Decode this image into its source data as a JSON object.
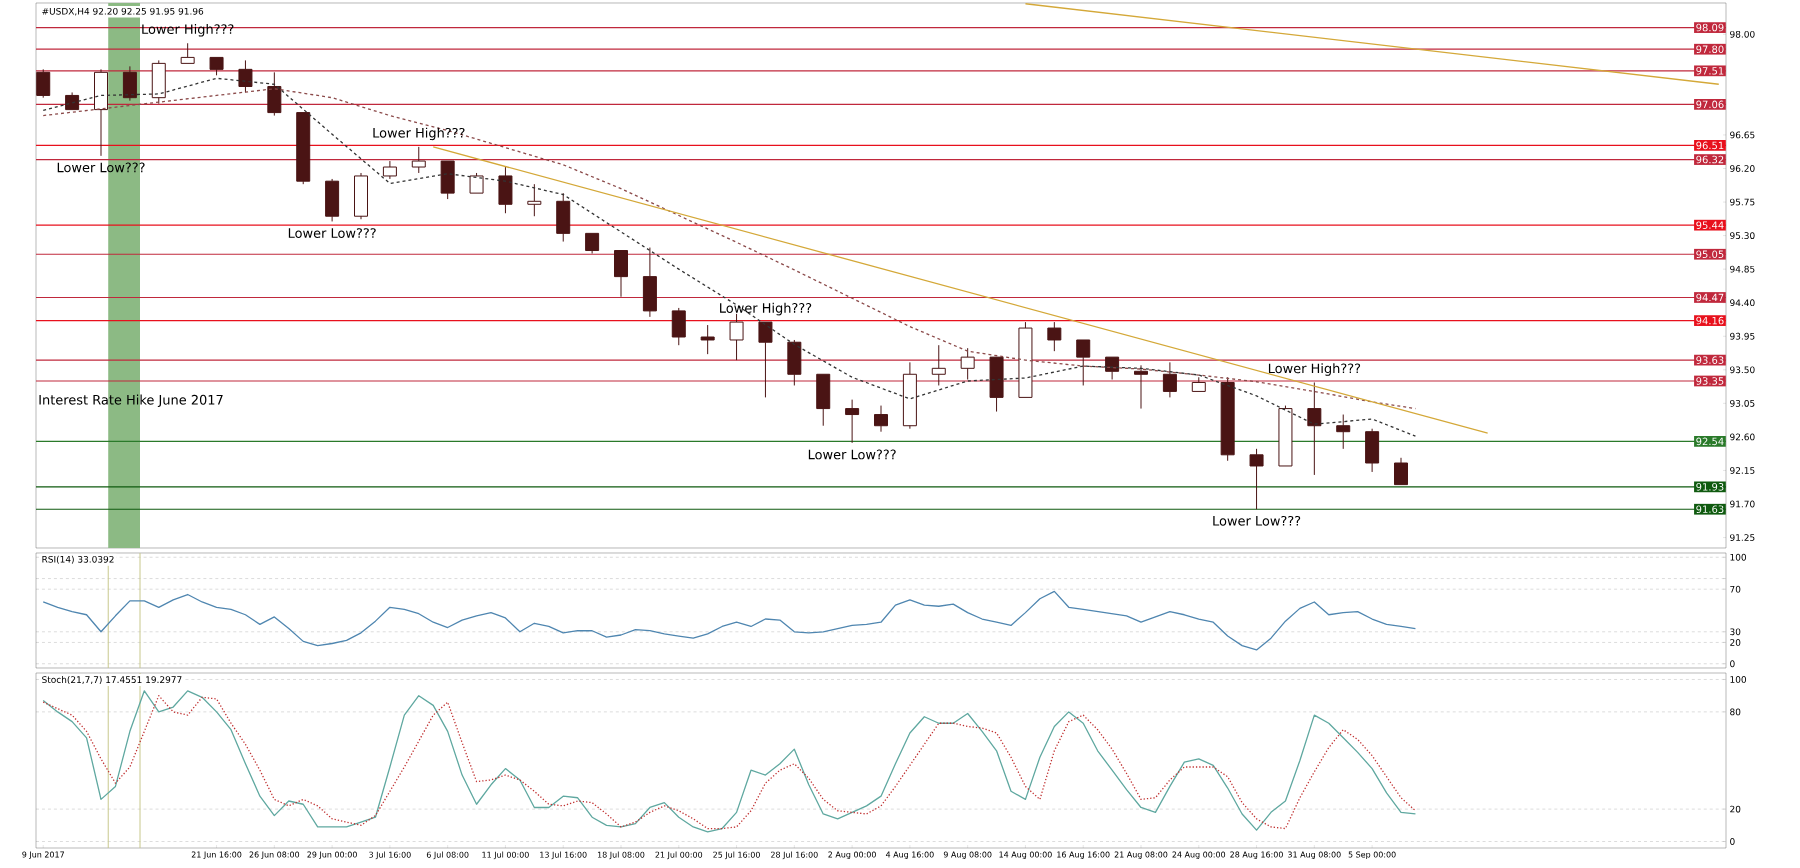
{
  "chart_data": [
    {
      "type": "candlestick",
      "title": "#USDX,H4 92.20 92.25 91.95 91.96",
      "color": "#4a1414",
      "tick_labels": "y",
      "ohlc": [
        [
          97.49,
          97.53,
          97.15,
          97.18
        ],
        null,
        [
          97.18,
          97.22,
          96.99,
          96.99
        ],
        null,
        [
          96.99,
          97.53,
          96.37,
          97.49
        ],
        null,
        [
          97.49,
          97.57,
          97.11,
          97.15
        ],
        null,
        [
          97.15,
          97.65,
          97.07,
          97.61
        ],
        null,
        [
          97.61,
          97.88,
          97.61,
          97.69
        ],
        null,
        [
          97.69,
          97.69,
          97.45,
          97.53
        ],
        null,
        [
          97.53,
          97.65,
          97.22,
          97.3
        ],
        null,
        [
          97.3,
          97.49,
          96.91,
          96.95
        ],
        null,
        [
          96.95,
          96.95,
          95.99,
          96.03
        ],
        null,
        [
          96.03,
          96.06,
          95.49,
          95.56
        ],
        null,
        [
          95.56,
          96.14,
          95.52,
          96.1
        ],
        null,
        [
          96.1,
          96.3,
          96.06,
          96.22
        ],
        null,
        [
          96.22,
          96.49,
          96.14,
          96.3
        ],
        null,
        [
          96.3,
          96.3,
          95.79,
          95.87
        ],
        null,
        [
          95.87,
          96.14,
          95.87,
          96.1
        ],
        null,
        [
          96.1,
          96.22,
          95.6,
          95.72
        ],
        null,
        [
          95.72,
          95.99,
          95.56,
          95.76
        ],
        null,
        [
          95.76,
          95.87,
          95.22,
          95.33
        ],
        null,
        [
          95.33,
          95.33,
          95.06,
          95.1
        ],
        null,
        [
          95.1,
          95.1,
          94.48,
          94.75
        ],
        null,
        [
          94.75,
          95.14,
          94.21,
          94.29
        ],
        null,
        [
          94.29,
          94.33,
          93.83,
          93.94
        ],
        null,
        [
          93.94,
          94.1,
          93.71,
          93.9
        ],
        null,
        [
          93.9,
          94.25,
          93.63,
          94.14
        ],
        null,
        [
          94.14,
          94.14,
          93.13,
          93.87
        ],
        null,
        [
          93.87,
          93.9,
          93.29,
          93.44
        ],
        null,
        [
          93.44,
          93.44,
          92.75,
          92.98
        ],
        null,
        [
          92.98,
          93.1,
          92.52,
          92.9
        ],
        null,
        [
          92.9,
          93.02,
          92.67,
          92.75
        ],
        null,
        [
          92.75,
          93.6,
          92.71,
          93.44
        ],
        null,
        [
          93.44,
          93.83,
          93.29,
          93.52
        ],
        null,
        [
          93.52,
          93.79,
          93.37,
          93.67
        ],
        null,
        [
          93.67,
          93.67,
          92.94,
          93.13
        ],
        null,
        [
          93.13,
          94.14,
          93.13,
          94.06
        ],
        null,
        [
          94.06,
          94.14,
          93.75,
          93.9
        ],
        null,
        [
          93.9,
          93.9,
          93.29,
          93.67
        ],
        null,
        [
          93.67,
          93.67,
          93.37,
          93.48
        ],
        null,
        [
          93.48,
          93.56,
          92.98,
          93.44
        ],
        null,
        [
          93.44,
          93.6,
          93.13,
          93.21
        ],
        null,
        [
          93.21,
          93.4,
          93.21,
          93.33
        ],
        null,
        [
          93.33,
          93.4,
          92.28,
          92.36
        ],
        null,
        [
          92.36,
          92.44,
          91.63,
          92.21
        ],
        null,
        [
          92.21,
          93.02,
          92.21,
          92.98
        ],
        null,
        [
          92.98,
          93.33,
          92.09,
          92.75
        ],
        null,
        [
          92.75,
          92.9,
          92.44,
          92.67
        ],
        null,
        [
          92.67,
          92.71,
          92.13,
          92.25
        ],
        null,
        [
          92.25,
          92.32,
          91.96,
          91.96
        ],
        null,
        null,
        null,
        null,
        null,
        null,
        null,
        null,
        null,
        null,
        null,
        null,
        null,
        null,
        null,
        null,
        null,
        null,
        null,
        null,
        null,
        null
      ],
      "series": [
        {
          "type": "line",
          "color": "#8b4a4a",
          "line_style": "dashed",
          "values": [
            96.91,
            null,
            null,
            null,
            97.0,
            null,
            null,
            null,
            97.09,
            null,
            null,
            null,
            97.18,
            null,
            null,
            null,
            97.27,
            null,
            null,
            null,
            97.15,
            null,
            null,
            null,
            96.91,
            null,
            null,
            null,
            96.71,
            null,
            null,
            null,
            96.48,
            null,
            null,
            null,
            96.25,
            null,
            null,
            null,
            95.93,
            null,
            null,
            null,
            95.57,
            null,
            null,
            null,
            95.21,
            null,
            null,
            null,
            94.84,
            null,
            null,
            null,
            94.46,
            null,
            null,
            null,
            94.08,
            null,
            null,
            null,
            93.75,
            null,
            null,
            null,
            93.63,
            null,
            null,
            null,
            93.55,
            null,
            null,
            null,
            93.51,
            null,
            null,
            null,
            93.43,
            null,
            null,
            null,
            93.34,
            null,
            null,
            null,
            93.21,
            null,
            null,
            null,
            93.07,
            null,
            null,
            92.98,
            null,
            null,
            null,
            null,
            null,
            null,
            null,
            null,
            null,
            null,
            null,
            null,
            null,
            null,
            null,
            null,
            null,
            null,
            null,
            null,
            null
          ]
        },
        {
          "type": "line",
          "color": "#333333",
          "line_style": "dashed",
          "values": [
            96.98,
            null,
            null,
            null,
            97.18,
            null,
            null,
            null,
            97.2,
            null,
            null,
            null,
            97.41,
            null,
            null,
            null,
            97.33,
            null,
            null,
            null,
            96.66,
            null,
            null,
            null,
            96.0,
            null,
            null,
            null,
            96.13,
            null,
            null,
            null,
            96.03,
            null,
            null,
            null,
            95.85,
            null,
            null,
            null,
            95.35,
            null,
            null,
            null,
            94.85,
            null,
            null,
            null,
            94.37,
            null,
            null,
            null,
            93.84,
            null,
            null,
            null,
            93.4,
            null,
            null,
            null,
            93.11,
            null,
            null,
            null,
            93.35,
            null,
            null,
            null,
            93.39,
            null,
            null,
            null,
            93.55,
            null,
            null,
            null,
            93.52,
            null,
            null,
            null,
            93.43,
            null,
            null,
            null,
            93.15,
            null,
            null,
            null,
            92.77,
            null,
            null,
            null,
            92.84,
            null,
            null,
            92.61,
            null,
            null,
            null,
            null,
            null,
            null,
            null,
            null,
            null,
            null,
            null,
            null,
            null,
            null,
            null,
            null,
            null,
            null,
            null,
            null,
            null
          ]
        },
        {
          "type": "line",
          "color": "#d4a838",
          "line_style": "solid",
          "values": [
            null,
            null,
            null,
            null,
            null,
            null,
            null,
            null,
            null,
            null,
            null,
            null,
            null,
            null,
            null,
            null,
            null,
            null,
            null,
            null,
            null,
            null,
            null,
            null,
            null,
            null,
            null,
            96.49,
            null,
            null,
            null,
            null,
            null,
            null,
            null,
            null,
            null,
            null,
            null,
            null,
            null,
            null,
            null,
            null,
            null,
            null,
            null,
            null,
            null,
            null,
            null,
            null,
            null,
            null,
            null,
            null,
            null,
            null,
            null,
            null,
            null,
            null,
            null,
            null,
            null,
            null,
            null,
            null,
            null,
            null,
            null,
            null,
            null,
            null,
            null,
            null,
            null,
            null,
            null,
            null,
            null,
            null,
            null,
            null,
            null,
            null,
            null,
            null,
            null,
            null,
            null,
            null,
            null,
            null,
            null,
            null,
            null,
            null,
            null,
            null,
            92.65,
            null,
            null,
            null,
            null,
            null,
            null,
            null,
            null,
            null,
            null,
            null,
            null,
            null,
            null,
            null,
            null
          ]
        },
        {
          "type": "line",
          "color": "#d4a838",
          "line_style": "solid",
          "values": [
            null,
            null,
            null,
            null,
            null,
            null,
            null,
            null,
            null,
            null,
            null,
            null,
            null,
            null,
            null,
            null,
            null,
            null,
            null,
            null,
            null,
            null,
            null,
            null,
            null,
            null,
            null,
            null,
            null,
            null,
            null,
            null,
            null,
            null,
            null,
            null,
            null,
            null,
            null,
            null,
            null,
            null,
            null,
            null,
            null,
            null,
            null,
            null,
            null,
            null,
            null,
            null,
            null,
            null,
            null,
            null,
            null,
            null,
            null,
            null,
            null,
            null,
            null,
            null,
            null,
            null,
            null,
            null,
            98.41,
            null,
            null,
            null,
            null,
            null,
            null,
            null,
            null,
            null,
            null,
            null,
            null,
            null,
            null,
            null,
            null,
            null,
            null,
            null,
            null,
            null,
            null,
            null,
            null,
            null,
            null,
            null,
            null,
            null,
            null,
            null,
            null,
            null,
            null,
            null,
            null,
            null,
            null,
            null,
            null,
            null,
            null,
            null,
            null,
            null,
            null,
            null,
            97.33
          ]
        }
      ],
      "ylim": [
        91.11,
        98.42
      ],
      "yticks": [
        {
          "value": 98,
          "label": "98.00"
        },
        {
          "value": 96.65,
          "label": "96.65"
        },
        {
          "value": 96.2,
          "label": "96.20"
        },
        {
          "value": 95.75,
          "label": "95.75"
        },
        {
          "value": 95.3,
          "label": "95.30"
        },
        {
          "value": 94.85,
          "label": "94.85"
        },
        {
          "value": 94.4,
          "label": "94.40"
        },
        {
          "value": 93.95,
          "label": "93.95"
        },
        {
          "value": 93.5,
          "label": "93.50"
        },
        {
          "value": 93.05,
          "label": "93.05"
        },
        {
          "value": 92.6,
          "label": "92.60"
        },
        {
          "value": 92.15,
          "label": "92.15"
        },
        {
          "value": 91.7,
          "label": "91.70"
        },
        {
          "value": 91.25,
          "label": "91.25"
        }
      ],
      "ref_lines": [
        {
          "axis": "y",
          "value": 98.09,
          "label": "98.09",
          "color": "#c0283c"
        },
        {
          "axis": "y",
          "value": 97.8,
          "label": "97.80",
          "color": "#c0283c"
        },
        {
          "axis": "y",
          "value": 97.51,
          "label": "97.51",
          "color": "#c0283c"
        },
        {
          "axis": "y",
          "value": 97.06,
          "label": "97.06",
          "color": "#c0283c"
        },
        {
          "axis": "y",
          "value": 96.51,
          "label": "96.51",
          "color": "#e8101c"
        },
        {
          "axis": "y",
          "value": 96.32,
          "label": "96.32",
          "color": "#c0283c"
        },
        {
          "axis": "y",
          "value": 95.44,
          "label": "95.44",
          "color": "#e8101c"
        },
        {
          "axis": "y",
          "value": 95.05,
          "label": "95.05",
          "color": "#c0283c"
        },
        {
          "axis": "y",
          "value": 94.47,
          "label": "94.47",
          "color": "#c0283c"
        },
        {
          "axis": "y",
          "value": 94.16,
          "label": "94.16",
          "color": "#e8101c"
        },
        {
          "axis": "y",
          "value": 93.63,
          "label": "93.63",
          "color": "#c0283c"
        },
        {
          "axis": "y",
          "value": 93.35,
          "label": "93.35",
          "color": "#c0283c"
        },
        {
          "axis": "y",
          "value": 92.54,
          "label": "92.54",
          "color": "#2a7a2a"
        },
        {
          "axis": "y",
          "value": 91.93,
          "label": "91.93",
          "color": "#0f5a0f"
        },
        {
          "axis": "y",
          "value": 91.63,
          "label": "91.63",
          "color": "#0f5a0f"
        }
      ],
      "annotations": [
        {
          "text": "Lower High???",
          "y": 97.88
        },
        {
          "text": "Lower Low???",
          "y": 96.37
        },
        {
          "text": "Lower High???",
          "y": 96.49
        },
        {
          "text": "Lower Low???",
          "y": 95.49
        },
        {
          "text": "Lower High???",
          "y": 94.14
        },
        {
          "text": "Lower Low???",
          "y": 92.52
        },
        {
          "text": "Lower High???",
          "y": 93.33
        },
        {
          "text": "Lower Low???",
          "y": 91.63
        },
        "Interest Rate Hike June 2017"
      ]
    },
    {
      "type": "line",
      "title": "RSI(14) 33.0392",
      "color": "#4f86b0",
      "tick_labels": "y",
      "grid": "y",
      "values": [
        58,
        53,
        49,
        46,
        30,
        45,
        59,
        59,
        53,
        60,
        65,
        58,
        53,
        51,
        46,
        37,
        44,
        33,
        21,
        17,
        19,
        22,
        29,
        40,
        53,
        51,
        47,
        39,
        34,
        41,
        45,
        48,
        43,
        30,
        38,
        35,
        29,
        31,
        31,
        25,
        27,
        32,
        31,
        28,
        26,
        24,
        28,
        35,
        39,
        35,
        42,
        41,
        30,
        29,
        30,
        33,
        36,
        37,
        39,
        55,
        60,
        55,
        54,
        56,
        48,
        42,
        39,
        36,
        48,
        61,
        68,
        53,
        51,
        49,
        47,
        45,
        39,
        44,
        49,
        46,
        42,
        39,
        26,
        17,
        13,
        24,
        40,
        52,
        58,
        46,
        48,
        49,
        42,
        37,
        35,
        33,
        null,
        null,
        null,
        null,
        null,
        null,
        null,
        null,
        null,
        null,
        null,
        null,
        null,
        null,
        null,
        null,
        null,
        null,
        null,
        null,
        null
      ],
      "ylim": [
        -4,
        104
      ],
      "yticks": [
        0,
        20,
        30,
        70,
        {
          "value": 80,
          "label": null
        },
        100
      ]
    },
    {
      "type": "line",
      "title": "Stoch(21,7,7) 17.4551 19.2977",
      "grid": "y",
      "categories": [
        "9 Jun 2017",
        null,
        null,
        null,
        null,
        null,
        null,
        null,
        null,
        null,
        null,
        null,
        "21 Jun 16:00",
        null,
        null,
        null,
        "26 Jun 08:00",
        null,
        null,
        null,
        "29 Jun 00:00",
        null,
        null,
        null,
        "3 Jul 16:00",
        null,
        null,
        null,
        "6 Jul 08:00",
        null,
        null,
        null,
        "11 Jul 00:00",
        null,
        null,
        null,
        "13 Jul 16:00",
        null,
        null,
        null,
        "18 Jul 08:00",
        null,
        null,
        null,
        "21 Jul 00:00",
        null,
        null,
        null,
        "25 Jul 16:00",
        null,
        null,
        null,
        "28 Jul 16:00",
        null,
        null,
        null,
        "2 Aug 00:00",
        null,
        null,
        null,
        "4 Aug 16:00",
        null,
        null,
        null,
        "9 Aug 08:00",
        null,
        null,
        null,
        "14 Aug 00:00",
        null,
        null,
        null,
        "16 Aug 16:00",
        null,
        null,
        null,
        "21 Aug 08:00",
        null,
        null,
        null,
        "24 Aug 00:00",
        null,
        null,
        null,
        "28 Aug 16:00",
        null,
        null,
        null,
        "31 Aug 08:00",
        null,
        null,
        null,
        "5 Sep 00:00",
        null,
        null,
        null,
        null,
        null,
        null,
        null,
        null,
        null,
        null,
        null,
        null,
        null,
        null,
        null,
        null,
        null,
        null,
        null,
        null,
        null,
        null,
        null,
        null
      ],
      "series": [
        {
          "color": "#5fa8a0",
          "line_style": "solid",
          "values": [
            87,
            80,
            74,
            64,
            26,
            34,
            68,
            93,
            80,
            83,
            93,
            89,
            80,
            69,
            48,
            28,
            16,
            25,
            23,
            9,
            9,
            9,
            12,
            15,
            46,
            78,
            90,
            84,
            68,
            41,
            23,
            35,
            45,
            38,
            21,
            21,
            28,
            27,
            15,
            10,
            9,
            11,
            21,
            24,
            15,
            9,
            6,
            8,
            18,
            44,
            41,
            48,
            57,
            35,
            17,
            14,
            18,
            22,
            28,
            48,
            67,
            77,
            73,
            73,
            79,
            68,
            56,
            31,
            26,
            52,
            71,
            80,
            73,
            56,
            44,
            32,
            21,
            18,
            34,
            49,
            51,
            47,
            33,
            17,
            7,
            18,
            25,
            50,
            78,
            73,
            64,
            55,
            45,
            30,
            18,
            17,
            null,
            null,
            null,
            null,
            null,
            null,
            null,
            null,
            null,
            null,
            null,
            null,
            null,
            null,
            null,
            null,
            null,
            null,
            null,
            null,
            null
          ]
        },
        {
          "color": "#c03030",
          "line_style": "dotted",
          "values": [
            86,
            82,
            78,
            68,
            51,
            36,
            46,
            68,
            90,
            80,
            78,
            89,
            88,
            73,
            60,
            44,
            26,
            22,
            26,
            22,
            14,
            12,
            10,
            16,
            31,
            46,
            62,
            78,
            86,
            61,
            37,
            38,
            41,
            38,
            31,
            23,
            22,
            25,
            24,
            17,
            9,
            12,
            18,
            22,
            19,
            14,
            8,
            8,
            9,
            19,
            36,
            44,
            48,
            39,
            26,
            19,
            18,
            17,
            22,
            34,
            47,
            60,
            73,
            73,
            71,
            70,
            67,
            52,
            34,
            26,
            56,
            74,
            78,
            69,
            57,
            42,
            26,
            27,
            38,
            46,
            46,
            46,
            40,
            24,
            14,
            9,
            8,
            27,
            43,
            58,
            69,
            63,
            53,
            40,
            27,
            19,
            null,
            null,
            null,
            null,
            null,
            null,
            null,
            null,
            null,
            null,
            null,
            null,
            null,
            null,
            null,
            null,
            null,
            null,
            null,
            null,
            null
          ]
        }
      ],
      "ylim": [
        -4,
        104
      ],
      "yticks": [
        0,
        20,
        80,
        100
      ]
    }
  ]
}
